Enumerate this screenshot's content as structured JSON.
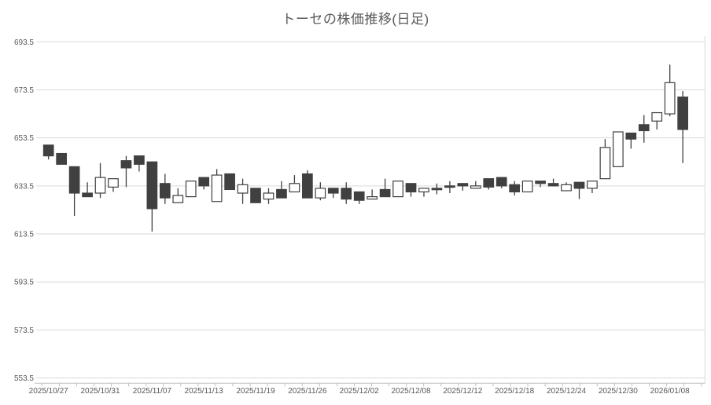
{
  "title": "トーセの株価推移(日足)",
  "colors": {
    "background": "#ffffff",
    "up_fill": "#ffffff",
    "down_fill": "#404040",
    "candle_outline": "#404040",
    "grid": "#d9d9d9",
    "axis_line": "#bfbfbf",
    "text": "#595959"
  },
  "chart_data": {
    "type": "candlestick",
    "title": "トーセの株価推移(日足)",
    "legend": "none",
    "grid": true,
    "y_axis": {
      "ticks": [
        553.5,
        573.5,
        593.5,
        613.5,
        633.5,
        653.5,
        673.5,
        693.5
      ],
      "tick_interval": 20,
      "range_min": 551.3,
      "range_max": 695.6
    },
    "x_axis": {
      "labels_shown": [
        "2025/10/27",
        "2025/10/31",
        "2025/11/07",
        "2025/11/13",
        "2025/11/19",
        "2025/11/26",
        "2025/12/02",
        "2025/12/08",
        "2025/12/12",
        "2025/12/18",
        "2025/12/24",
        "2025/12/30",
        "2026/01/08"
      ],
      "label_every_n_candles": 4
    },
    "candles": [
      {
        "date": "2025/10/27",
        "open": 650.5,
        "high": 650.5,
        "low": 644.5,
        "close": 646
      },
      {
        "date": "2025/10/28",
        "open": 647,
        "high": 647,
        "low": 642.5,
        "close": 642.5
      },
      {
        "date": "2025/10/29",
        "open": 641.5,
        "high": 641.5,
        "low": 621,
        "close": 630.5
      },
      {
        "date": "2025/10/30",
        "open": 630.5,
        "high": 635,
        "low": 629,
        "close": 629
      },
      {
        "date": "2025/10/31",
        "open": 630.5,
        "high": 643,
        "low": 628.5,
        "close": 637
      },
      {
        "date": "2025/11/04",
        "open": 633,
        "high": 636.5,
        "low": 631,
        "close": 636.5
      },
      {
        "date": "2025/11/05",
        "open": 644,
        "high": 646,
        "low": 633,
        "close": 641
      },
      {
        "date": "2025/11/06",
        "open": 646,
        "high": 646,
        "low": 639.5,
        "close": 642.5
      },
      {
        "date": "2025/11/07",
        "open": 643.5,
        "high": 643.5,
        "low": 614.5,
        "close": 624
      },
      {
        "date": "2025/11/10",
        "open": 634.5,
        "high": 638.5,
        "low": 626,
        "close": 628.5
      },
      {
        "date": "2025/11/11",
        "open": 626.5,
        "high": 632.5,
        "low": 626.5,
        "close": 629.5
      },
      {
        "date": "2025/11/12",
        "open": 629,
        "high": 635.5,
        "low": 629,
        "close": 635.5
      },
      {
        "date": "2025/11/13",
        "open": 637,
        "high": 637,
        "low": 632,
        "close": 633.5
      },
      {
        "date": "2025/11/14",
        "open": 627,
        "high": 640.5,
        "low": 627,
        "close": 638
      },
      {
        "date": "2025/11/17",
        "open": 638.5,
        "high": 638.5,
        "low": 632,
        "close": 632
      },
      {
        "date": "2025/11/18",
        "open": 630.5,
        "high": 636.5,
        "low": 626,
        "close": 634
      },
      {
        "date": "2025/11/19",
        "open": 632.5,
        "high": 632.5,
        "low": 626.5,
        "close": 626.5
      },
      {
        "date": "2025/11/20",
        "open": 628,
        "high": 632.5,
        "low": 626,
        "close": 630.5
      },
      {
        "date": "2025/11/21",
        "open": 632,
        "high": 635.5,
        "low": 628.5,
        "close": 628.5
      },
      {
        "date": "2025/11/25",
        "open": 631,
        "high": 638,
        "low": 631,
        "close": 634.5
      },
      {
        "date": "2025/11/26",
        "open": 638.5,
        "high": 640,
        "low": 628.5,
        "close": 628.5
      },
      {
        "date": "2025/11/27",
        "open": 628.5,
        "high": 635,
        "low": 627.5,
        "close": 632.5
      },
      {
        "date": "2025/11/28",
        "open": 632.5,
        "high": 632.5,
        "low": 628.5,
        "close": 630.5
      },
      {
        "date": "2025/12/01",
        "open": 632.5,
        "high": 635,
        "low": 626,
        "close": 628
      },
      {
        "date": "2025/12/02",
        "open": 631,
        "high": 631,
        "low": 626,
        "close": 627.5
      },
      {
        "date": "2025/12/03",
        "open": 628,
        "high": 632,
        "low": 628,
        "close": 629
      },
      {
        "date": "2025/12/04",
        "open": 632,
        "high": 636.5,
        "low": 629,
        "close": 629
      },
      {
        "date": "2025/12/05",
        "open": 629,
        "high": 635.5,
        "low": 629,
        "close": 635.5
      },
      {
        "date": "2025/12/08",
        "open": 634.5,
        "high": 634.5,
        "low": 629,
        "close": 631
      },
      {
        "date": "2025/12/09",
        "open": 631,
        "high": 632.5,
        "low": 629,
        "close": 632.5
      },
      {
        "date": "2025/12/10",
        "open": 632.5,
        "high": 634.5,
        "low": 630,
        "close": 632.5
      },
      {
        "date": "2025/12/11",
        "open": 633.5,
        "high": 635.5,
        "low": 630.5,
        "close": 633.5
      },
      {
        "date": "2025/12/12",
        "open": 634.5,
        "high": 634.5,
        "low": 631.5,
        "close": 633.5
      },
      {
        "date": "2025/12/15",
        "open": 632.5,
        "high": 635.5,
        "low": 632.5,
        "close": 633.5
      },
      {
        "date": "2025/12/16",
        "open": 636.5,
        "high": 636.5,
        "low": 632,
        "close": 633
      },
      {
        "date": "2025/12/17",
        "open": 637,
        "high": 637,
        "low": 632.5,
        "close": 633.5
      },
      {
        "date": "2025/12/18",
        "open": 634,
        "high": 635.5,
        "low": 629.5,
        "close": 631
      },
      {
        "date": "2025/12/19",
        "open": 631,
        "high": 635.5,
        "low": 631,
        "close": 635.5
      },
      {
        "date": "2025/12/22",
        "open": 635.5,
        "high": 635.5,
        "low": 633,
        "close": 634.5
      },
      {
        "date": "2025/12/23",
        "open": 634.5,
        "high": 636.5,
        "low": 633.5,
        "close": 633.5
      },
      {
        "date": "2025/12/24",
        "open": 631.5,
        "high": 635,
        "low": 631.5,
        "close": 634
      },
      {
        "date": "2025/12/25",
        "open": 635,
        "high": 635,
        "low": 628,
        "close": 632.5
      },
      {
        "date": "2025/12/26",
        "open": 632.5,
        "high": 635.5,
        "low": 630.5,
        "close": 635.5
      },
      {
        "date": "2025/12/29",
        "open": 636.5,
        "high": 653,
        "low": 636.5,
        "close": 649.5
      },
      {
        "date": "2025/12/30",
        "open": 641.5,
        "high": 656,
        "low": 641.5,
        "close": 656
      },
      {
        "date": "2026/01/05",
        "open": 655.5,
        "high": 655.5,
        "low": 649,
        "close": 653
      },
      {
        "date": "2026/01/06",
        "open": 659,
        "high": 663,
        "low": 651.5,
        "close": 656.5
      },
      {
        "date": "2026/01/07",
        "open": 660.5,
        "high": 664,
        "low": 657,
        "close": 664
      },
      {
        "date": "2026/01/08",
        "open": 663.5,
        "high": 684,
        "low": 662.5,
        "close": 676.5
      },
      {
        "date": "2026/01/09",
        "open": 670.5,
        "high": 673,
        "low": 643,
        "close": 657
      }
    ]
  }
}
